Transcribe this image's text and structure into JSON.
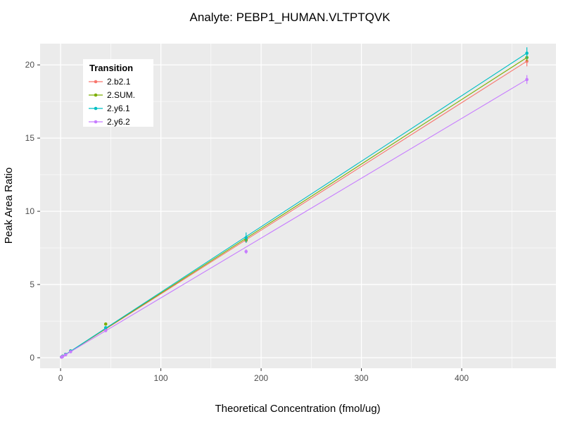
{
  "chart_data": {
    "type": "line",
    "title": "Analyte: PEBP1_HUMAN.VLTPTQVK",
    "xlabel": "Theoretical Concentration (fmol/ug)",
    "ylabel": "Peak Area Ratio",
    "xlim": [
      -20.4,
      494
    ],
    "ylim": [
      -0.72,
      21.45
    ],
    "xticks": [
      0,
      100,
      200,
      300,
      400
    ],
    "yticks": [
      0,
      5,
      10,
      15,
      20
    ],
    "xticks_minor": [
      50,
      150,
      250,
      350,
      450
    ],
    "yticks_minor": [
      2.5,
      7.5,
      12.5,
      17.5
    ],
    "grid": true,
    "panel_bg": "#EBEBEB",
    "gridline_color": "#FFFFFF",
    "legend_title": "Transition",
    "legend_position": "top-left-inside",
    "series": [
      {
        "name": "2.b2.1",
        "color": "#F8766D",
        "x": [
          1,
          2,
          5,
          10,
          45,
          185,
          465
        ],
        "y": [
          0.05,
          0.09,
          0.22,
          0.44,
          1.97,
          8.0,
          20.25
        ],
        "yerr": [
          0,
          0,
          0,
          0,
          0,
          0.15,
          0.35
        ]
      },
      {
        "name": "2.SUM.",
        "color": "#7CAE00",
        "x": [
          1,
          2,
          5,
          10,
          45,
          185,
          465
        ],
        "y": [
          0.05,
          0.1,
          0.23,
          0.46,
          2.3,
          8.05,
          20.5
        ],
        "yerr": [
          0,
          0,
          0,
          0,
          0,
          0.15,
          0.25
        ]
      },
      {
        "name": "2.y6.1",
        "color": "#00BFC4",
        "x": [
          1,
          2,
          5,
          10,
          45,
          185,
          465
        ],
        "y": [
          0.05,
          0.1,
          0.23,
          0.46,
          2.05,
          8.2,
          20.8
        ],
        "yerr": [
          0,
          0,
          0,
          0,
          0,
          0.35,
          0.4
        ]
      },
      {
        "name": "2.y6.2",
        "color": "#C77CFF",
        "x": [
          1,
          2,
          5,
          10,
          45,
          185,
          465
        ],
        "y": [
          0.04,
          0.08,
          0.2,
          0.41,
          1.85,
          7.25,
          19.0
        ],
        "yerr": [
          0,
          0,
          0,
          0,
          0,
          0.15,
          0.3
        ]
      }
    ]
  }
}
